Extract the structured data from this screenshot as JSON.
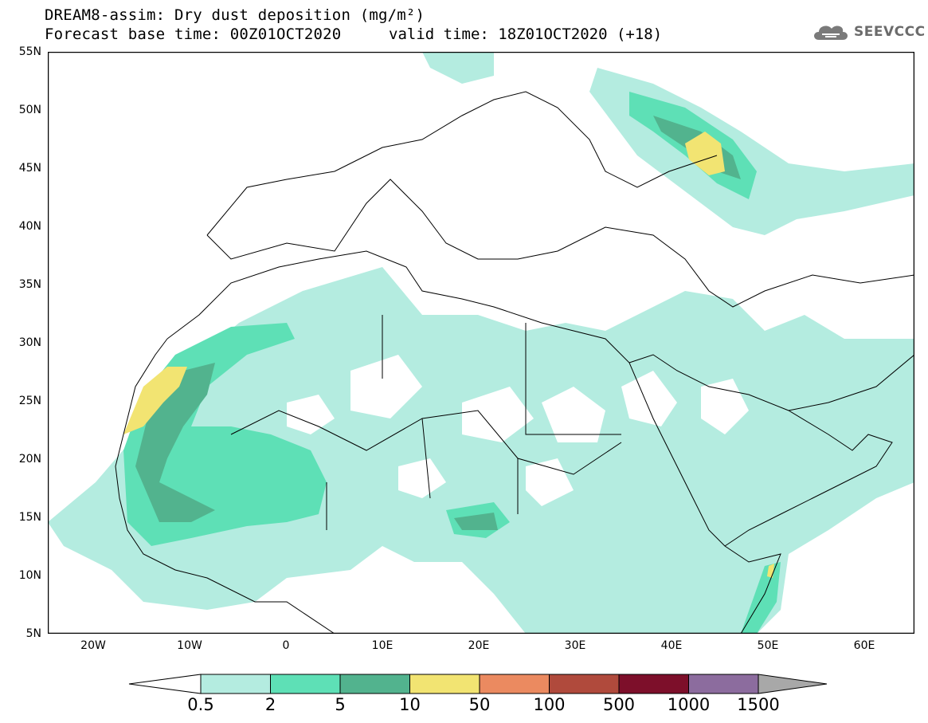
{
  "header": {
    "title_line1": "DREAM8-assim: Dry dust deposition (mg/m²)",
    "title_line2": "Forecast base time: 00Z01OCT2020",
    "valid_time": "valid time: 18Z01OCT2020 (+18)",
    "logo_text": "SEEVCCC",
    "logo_icon": "cloud-icon"
  },
  "axes": {
    "lat_labels": [
      "55N",
      "50N",
      "45N",
      "40N",
      "35N",
      "30N",
      "25N",
      "20N",
      "15N",
      "10N",
      "5N"
    ],
    "lon_labels": [
      "20W",
      "10W",
      "0",
      "10E",
      "20E",
      "30E",
      "40E",
      "50E",
      "60E"
    ]
  },
  "colorbar": {
    "levels": [
      "0.5",
      "2",
      "5",
      "10",
      "50",
      "100",
      "500",
      "1000",
      "1500"
    ],
    "colors": [
      "#b4ece0",
      "#5ee0b6",
      "#52b38e",
      "#f2e472",
      "#eb8a60",
      "#b04a3c",
      "#7d0f2a",
      "#8c6c9e"
    ],
    "under_color": "#ffffff",
    "over_color": "#a8a8a8"
  },
  "map": {
    "region": "North Africa, Europe and Middle East",
    "lon_range": [
      -25,
      65
    ],
    "lat_range": [
      5,
      55
    ]
  }
}
